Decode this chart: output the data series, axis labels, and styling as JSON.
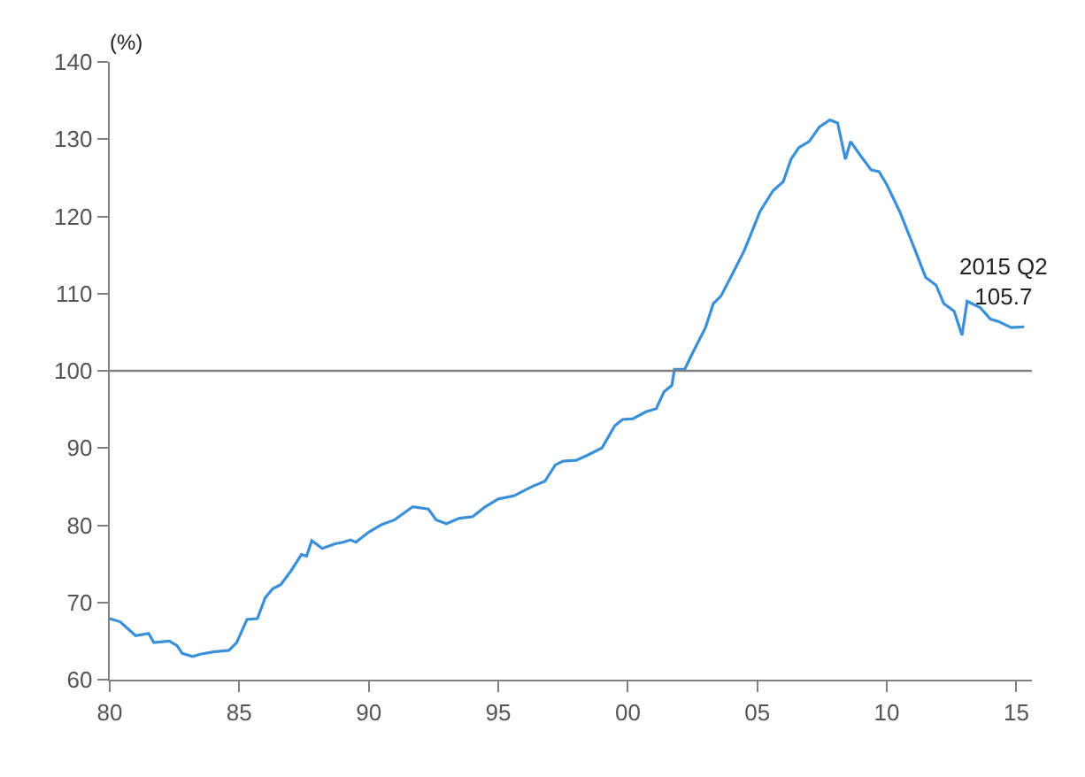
{
  "chart_data": {
    "type": "line",
    "ylabel": "(%)",
    "x": [
      1980.0,
      1980.4,
      1981.0,
      1981.5,
      1981.7,
      1982.3,
      1982.6,
      1982.8,
      1983.2,
      1983.5,
      1984.0,
      1984.6,
      1984.9,
      1985.3,
      1985.7,
      1986.0,
      1986.3,
      1986.6,
      1987.0,
      1987.4,
      1987.6,
      1987.8,
      1988.2,
      1988.7,
      1989.0,
      1989.3,
      1989.5,
      1990.0,
      1990.5,
      1991.0,
      1991.7,
      1992.3,
      1992.6,
      1993.0,
      1993.5,
      1994.0,
      1994.5,
      1995.0,
      1995.6,
      1996.3,
      1996.8,
      1997.2,
      1997.5,
      1998.0,
      1998.4,
      1999.0,
      1999.5,
      1999.8,
      2000.2,
      2000.7,
      2001.1,
      2001.4,
      2001.7,
      2001.8,
      2002.2,
      2002.5,
      2003.0,
      2003.3,
      2003.6,
      2004.0,
      2004.5,
      2004.8,
      2005.1,
      2005.6,
      2006.0,
      2006.3,
      2006.6,
      2007.0,
      2007.4,
      2007.8,
      2008.1,
      2008.4,
      2008.6,
      2009.0,
      2009.4,
      2009.7,
      2010.0,
      2010.5,
      2011.0,
      2011.5,
      2011.9,
      2012.2,
      2012.6,
      2012.9,
      2013.1,
      2013.6,
      2014.0,
      2014.3,
      2014.8,
      2015.3
    ],
    "series": [
      {
        "color": "#3a8fd9",
        "values": [
          67.9,
          67.5,
          65.7,
          66.0,
          64.8,
          65.0,
          64.4,
          63.4,
          63.0,
          63.3,
          63.6,
          63.8,
          64.8,
          67.8,
          67.9,
          70.6,
          71.8,
          72.3,
          74.1,
          76.2,
          76.0,
          78.0,
          77.0,
          77.6,
          77.8,
          78.1,
          77.8,
          79.1,
          80.1,
          80.7,
          82.4,
          82.1,
          80.7,
          80.2,
          80.9,
          81.1,
          82.4,
          83.4,
          83.8,
          85.0,
          85.7,
          87.8,
          88.3,
          88.4,
          89.0,
          90.0,
          92.9,
          93.7,
          93.8,
          94.7,
          95.1,
          97.3,
          98.1,
          100.2,
          100.2,
          102.3,
          105.6,
          108.7,
          109.7,
          112.3,
          115.6,
          118.1,
          120.6,
          123.3,
          124.5,
          127.4,
          128.9,
          129.7,
          131.6,
          132.5,
          132.1,
          127.4,
          129.7,
          127.8,
          126.0,
          125.8,
          124.1,
          120.6,
          116.4,
          112.1,
          111.1,
          108.7,
          107.7,
          104.6,
          109.0,
          108.2,
          106.7,
          106.4,
          105.6,
          105.7
        ]
      }
    ],
    "annotations": [
      {
        "text": "2015 Q2\n105.7",
        "x": 2015.3,
        "y": 105.7
      }
    ],
    "ref_lines": [
      {
        "axis": "y",
        "value": 100,
        "color": "#808080"
      }
    ],
    "xlim": [
      1980,
      2015.6
    ],
    "xticks": [
      {
        "value": 1980,
        "label": "80"
      },
      {
        "value": 1985,
        "label": "85"
      },
      {
        "value": 1990,
        "label": "90"
      },
      {
        "value": 1995,
        "label": "95"
      },
      {
        "value": 2000,
        "label": "00"
      },
      {
        "value": 2005,
        "label": "05"
      },
      {
        "value": 2010,
        "label": "10"
      },
      {
        "value": 2015,
        "label": "15"
      }
    ],
    "ylim": [
      60,
      140
    ],
    "yticks": [
      60,
      70,
      80,
      90,
      100,
      110,
      120,
      130,
      140
    ],
    "marker": "none",
    "line_style": "solid"
  }
}
